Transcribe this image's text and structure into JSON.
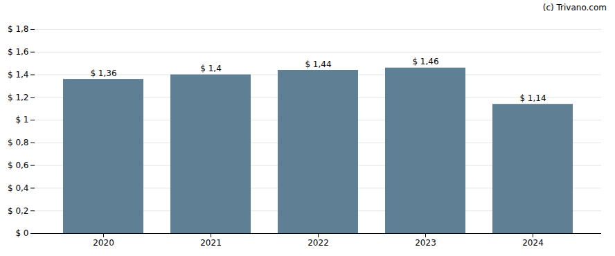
{
  "chart_data": {
    "type": "bar",
    "categories": [
      "2020",
      "2021",
      "2022",
      "2023",
      "2024"
    ],
    "values": [
      1.36,
      1.4,
      1.44,
      1.46,
      1.14
    ],
    "value_labels": [
      "$ 1,36",
      "$ 1,4",
      "$ 1,44",
      "$ 1,46",
      "$ 1,14"
    ],
    "data_labels": true,
    "color": "#5f7f94",
    "ylim": [
      0,
      1.8
    ],
    "yticks": [
      {
        "value": 0,
        "label": "$ 0"
      },
      {
        "value": 0.2,
        "label": "$ 0,2"
      },
      {
        "value": 0.4,
        "label": "$ 0,4"
      },
      {
        "value": 0.6,
        "label": "$ 0,6"
      },
      {
        "value": 0.8,
        "label": "$ 0,8"
      },
      {
        "value": 1.0,
        "label": "$ 1"
      },
      {
        "value": 1.2,
        "label": "$ 1,2"
      },
      {
        "value": 1.4,
        "label": "$ 1,4"
      },
      {
        "value": 1.6,
        "label": "$ 1,6"
      },
      {
        "value": 1.8,
        "label": "$ 1,8"
      }
    ],
    "grid": true,
    "annotations": [
      "(c) ",
      "Trivano.com"
    ]
  }
}
